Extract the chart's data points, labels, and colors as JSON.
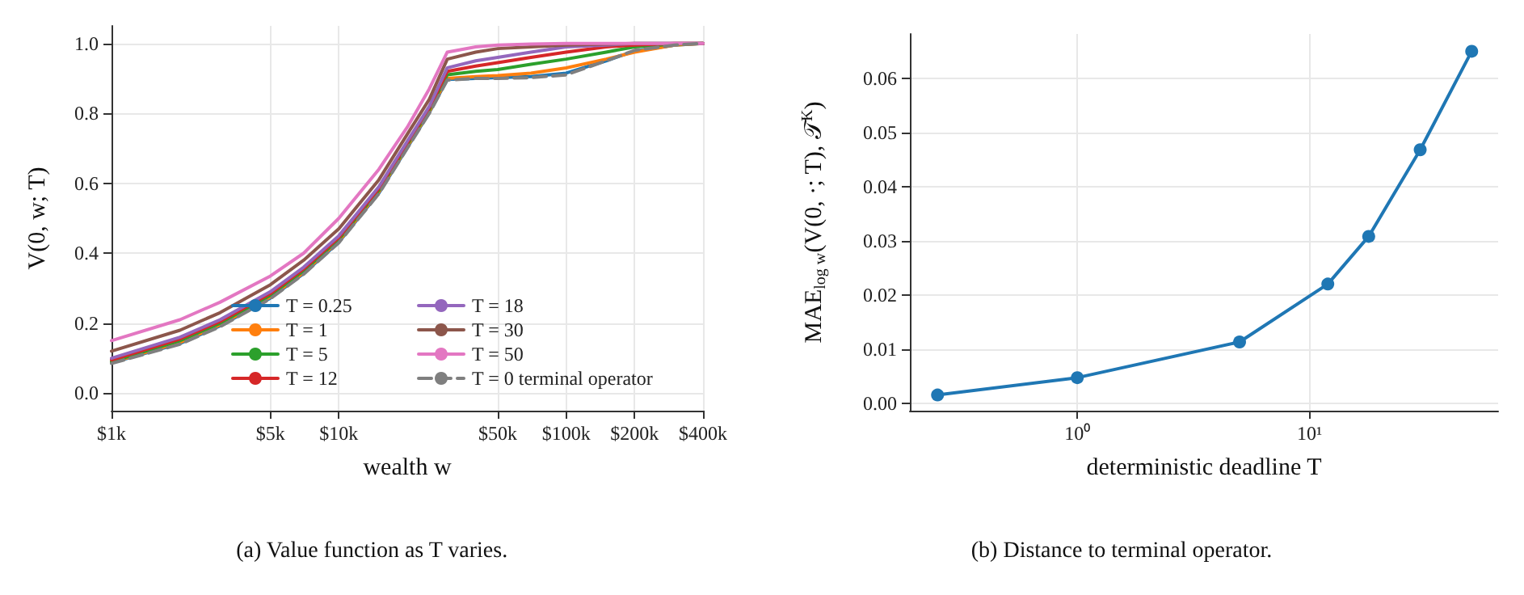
{
  "chart_data": [
    {
      "type": "line",
      "xlabel": "wealth w",
      "ylabel": "V(0, w; T)",
      "annotations": [
        "(a) Value function as T varies."
      ],
      "x": [
        1000,
        2000,
        3000,
        5000,
        7000,
        10000,
        15000,
        20000,
        25000,
        30000,
        40000,
        50000,
        70000,
        100000,
        150000,
        200000,
        300000,
        400000
      ],
      "series": [
        {
          "name": "T = 0.25",
          "color": "#1f77b4",
          "values": [
            0.087,
            0.142,
            0.192,
            0.272,
            0.342,
            0.432,
            0.572,
            0.702,
            0.802,
            0.897,
            0.9,
            0.902,
            0.905,
            0.915,
            0.95,
            0.978,
            0.995,
            1.0
          ]
        },
        {
          "name": "T = 1",
          "color": "#ff7f0e",
          "values": [
            0.088,
            0.145,
            0.195,
            0.275,
            0.345,
            0.435,
            0.575,
            0.705,
            0.805,
            0.9,
            0.905,
            0.908,
            0.915,
            0.93,
            0.955,
            0.975,
            0.995,
            1.0
          ]
        },
        {
          "name": "T = 5",
          "color": "#2ca02c",
          "values": [
            0.09,
            0.15,
            0.2,
            0.28,
            0.35,
            0.44,
            0.58,
            0.71,
            0.81,
            0.91,
            0.92,
            0.925,
            0.94,
            0.955,
            0.975,
            0.99,
            0.998,
            1.0
          ]
        },
        {
          "name": "T = 12",
          "color": "#d62728",
          "values": [
            0.095,
            0.155,
            0.205,
            0.285,
            0.355,
            0.445,
            0.585,
            0.715,
            0.815,
            0.92,
            0.935,
            0.945,
            0.96,
            0.975,
            0.99,
            0.995,
            1.0,
            1.0
          ]
        },
        {
          "name": "T = 18",
          "color": "#9467bd",
          "values": [
            0.1,
            0.16,
            0.21,
            0.29,
            0.36,
            0.45,
            0.59,
            0.72,
            0.82,
            0.93,
            0.95,
            0.96,
            0.975,
            0.99,
            0.995,
            1.0,
            1.0,
            1.0
          ]
        },
        {
          "name": "T = 30",
          "color": "#8c564b",
          "values": [
            0.12,
            0.18,
            0.23,
            0.31,
            0.38,
            0.47,
            0.61,
            0.74,
            0.84,
            0.955,
            0.975,
            0.985,
            0.99,
            0.995,
            0.998,
            1.0,
            1.0,
            1.0
          ]
        },
        {
          "name": "T = 50",
          "color": "#e377c2",
          "values": [
            0.15,
            0.21,
            0.26,
            0.335,
            0.4,
            0.5,
            0.64,
            0.76,
            0.87,
            0.975,
            0.99,
            0.995,
            0.998,
            1.0,
            1.0,
            1.0,
            1.0,
            1.0
          ]
        },
        {
          "name": "T = 0 terminal operator",
          "color": "#7f7f7f",
          "line_style": "dashed",
          "values": [
            0.085,
            0.14,
            0.19,
            0.27,
            0.34,
            0.43,
            0.57,
            0.7,
            0.8,
            0.895,
            0.9,
            0.9,
            0.902,
            0.91,
            0.95,
            0.98,
            0.995,
            1.0
          ]
        }
      ],
      "log": "x",
      "xlim": [
        1000,
        400000
      ],
      "xticks": [
        {
          "value": 1000,
          "label": "$1k"
        },
        {
          "value": 5000,
          "label": "$5k"
        },
        {
          "value": 10000,
          "label": "$10k"
        },
        {
          "value": 50000,
          "label": "$50k"
        },
        {
          "value": 100000,
          "label": "$100k"
        },
        {
          "value": 200000,
          "label": "$200k"
        },
        {
          "value": 400000,
          "label": "$400k"
        }
      ],
      "ylim": [
        -0.05,
        1.05
      ],
      "yticks": [
        {
          "value": 0,
          "label": "0.0"
        },
        {
          "value": 0.2,
          "label": "0.2"
        },
        {
          "value": 0.4,
          "label": "0.4"
        },
        {
          "value": 0.6,
          "label": "0.6"
        },
        {
          "value": 0.8,
          "label": "0.8"
        },
        {
          "value": 1,
          "label": "1.0"
        }
      ],
      "grid": true,
      "legend": "bottom right",
      "marker": "none",
      "line_style": "solid"
    },
    {
      "type": "line",
      "xlabel": "deterministic deadline T",
      "ylabel": "MAE$_{log w}$(V(0, ·; T), 𝒯$^{K}$)",
      "annotations": [
        "(b) Distance to terminal operator."
      ],
      "x": [
        0.25,
        1,
        5,
        12,
        18,
        30,
        50
      ],
      "series": [
        {
          "color": "#1f77b4",
          "values": [
            0.0015,
            0.0047,
            0.0113,
            0.022,
            0.0308,
            0.0468,
            0.065
          ]
        }
      ],
      "log": "x",
      "xlim": [
        0.19,
        65
      ],
      "xticks": [
        {
          "value": 1,
          "label": "10⁰"
        },
        {
          "value": 10,
          "label": "10¹"
        }
      ],
      "ylim": [
        -0.0014,
        0.0682
      ],
      "yticks": [
        {
          "value": 0,
          "label": "0.00"
        },
        {
          "value": 0.01,
          "label": "0.01"
        },
        {
          "value": 0.02,
          "label": "0.02"
        },
        {
          "value": 0.03,
          "label": "0.03"
        },
        {
          "value": 0.04,
          "label": "0.04"
        },
        {
          "value": 0.05,
          "label": "0.05"
        },
        {
          "value": 0.06,
          "label": "0.06"
        }
      ],
      "grid": true,
      "legend": false,
      "marker": "circle",
      "line_style": "solid"
    }
  ]
}
